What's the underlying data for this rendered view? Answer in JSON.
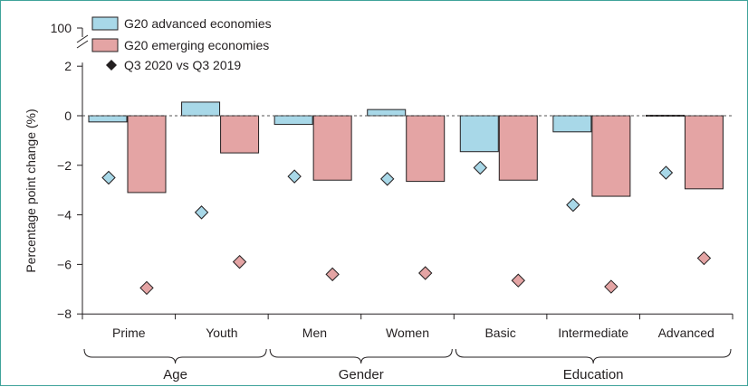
{
  "chart_data": {
    "type": "bar",
    "ylabel": "Percentage point change (%)",
    "y_ticks": [
      "100",
      "2",
      "0",
      "−2",
      "−4",
      "−6",
      "−8"
    ],
    "ylim": [
      -8,
      2
    ],
    "axis_break": true,
    "categories": [
      "Prime",
      "Youth",
      "Men",
      "Women",
      "Basic",
      "Intermediate",
      "Advanced"
    ],
    "groups": [
      {
        "label": "Age",
        "categories": [
          "Prime",
          "Youth"
        ]
      },
      {
        "label": "Gender",
        "categories": [
          "Men",
          "Women"
        ]
      },
      {
        "label": "Education",
        "categories": [
          "Basic",
          "Intermediate",
          "Advanced"
        ]
      }
    ],
    "series": [
      {
        "name": "G20 advanced economies",
        "color": "#a8d8e8",
        "values": [
          -0.25,
          0.55,
          -0.35,
          0.25,
          -1.45,
          -0.65,
          0.02
        ],
        "markers": [
          -2.5,
          -3.9,
          -2.45,
          -2.55,
          -2.1,
          -3.6,
          -2.3
        ]
      },
      {
        "name": "G20 emerging economies",
        "color": "#e4a4a4",
        "values": [
          -3.1,
          -1.5,
          -2.6,
          -2.65,
          -2.6,
          -3.25,
          -2.95
        ],
        "markers": [
          -6.95,
          -5.9,
          -6.4,
          -6.35,
          -6.65,
          -6.9,
          -5.75
        ]
      }
    ],
    "marker_legend": "Q3 2020 vs Q3 2019",
    "legend_position": "top-left",
    "grid": false,
    "zero_line": "dashed"
  }
}
